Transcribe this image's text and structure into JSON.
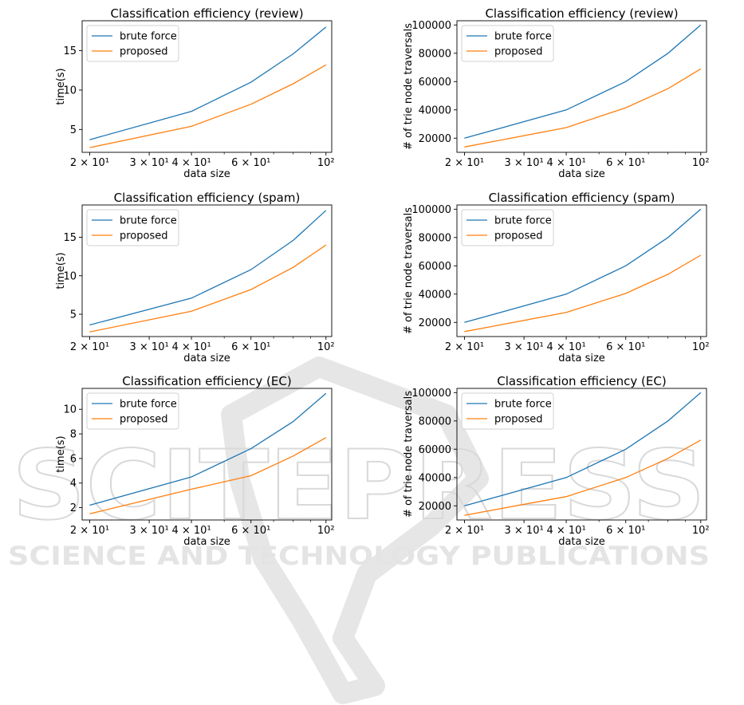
{
  "colors": {
    "brute_force": "#1f77b4",
    "proposed": "#ff7f0e"
  },
  "watermark": {
    "logo_text": "SCITEPRESS",
    "sub_text": "SCIENCE AND TECHNOLOGY PUBLICATIONS"
  },
  "chart_data": [
    {
      "type": "line",
      "title": "Classification efficiency (review)",
      "xlabel": "data size",
      "ylabel": "time(s)",
      "xscale": "log",
      "xlim": [
        19,
        104
      ],
      "ylim": [
        2.1,
        18.8
      ],
      "xticks": [
        {
          "value": 20,
          "label": "2 × 10¹"
        },
        {
          "value": 30,
          "label": "3 × 10¹"
        },
        {
          "value": 40,
          "label": "4 × 10¹"
        },
        {
          "value": 60,
          "label": "6 × 10¹"
        },
        {
          "value": 100,
          "label": "10²"
        }
      ],
      "yticks": [
        5,
        10,
        15
      ],
      "legend_position": "upper-left",
      "x": [
        20,
        40,
        60,
        80,
        100
      ],
      "series": [
        {
          "name": "brute force",
          "values": [
            3.7,
            7.3,
            11.0,
            14.6,
            18.0
          ]
        },
        {
          "name": "proposed",
          "values": [
            2.7,
            5.4,
            8.2,
            10.8,
            13.2
          ]
        }
      ]
    },
    {
      "type": "line",
      "title": "Classification efficiency (review)",
      "xlabel": "data size",
      "ylabel": "# of trie node traversals",
      "xscale": "log",
      "xlim": [
        19,
        104
      ],
      "ylim": [
        10000,
        103000
      ],
      "xticks": [
        {
          "value": 20,
          "label": "2 × 10¹"
        },
        {
          "value": 30,
          "label": "3 × 10¹"
        },
        {
          "value": 40,
          "label": "4 × 10¹"
        },
        {
          "value": 60,
          "label": "6 × 10¹"
        },
        {
          "value": 100,
          "label": "10²"
        }
      ],
      "yticks": [
        20000,
        40000,
        60000,
        80000,
        100000
      ],
      "legend_position": "upper-left",
      "x": [
        20,
        40,
        60,
        80,
        100
      ],
      "series": [
        {
          "name": "brute force",
          "values": [
            20000,
            40000,
            60000,
            80000,
            100000
          ]
        },
        {
          "name": "proposed",
          "values": [
            13800,
            27500,
            41500,
            55000,
            69000
          ]
        }
      ]
    },
    {
      "type": "line",
      "title": "Classification efficiency (spam)",
      "xlabel": "data size",
      "ylabel": "time(s)",
      "xscale": "log",
      "xlim": [
        19,
        104
      ],
      "ylim": [
        2.1,
        19.2
      ],
      "xticks": [
        {
          "value": 20,
          "label": "2 × 10¹"
        },
        {
          "value": 30,
          "label": "3 × 10¹"
        },
        {
          "value": 40,
          "label": "4 × 10¹"
        },
        {
          "value": 60,
          "label": "6 × 10¹"
        },
        {
          "value": 100,
          "label": "10²"
        }
      ],
      "yticks": [
        5,
        10,
        15
      ],
      "legend_position": "upper-left",
      "x": [
        20,
        40,
        60,
        80,
        100
      ],
      "series": [
        {
          "name": "brute force",
          "values": [
            3.6,
            7.1,
            10.8,
            14.6,
            18.5
          ]
        },
        {
          "name": "proposed",
          "values": [
            2.7,
            5.4,
            8.2,
            11.1,
            14.0
          ]
        }
      ]
    },
    {
      "type": "line",
      "title": "Classification efficiency (spam)",
      "xlabel": "data size",
      "ylabel": "# of trie node traversals",
      "xscale": "log",
      "xlim": [
        19,
        104
      ],
      "ylim": [
        10000,
        103000
      ],
      "xticks": [
        {
          "value": 20,
          "label": "2 × 10¹"
        },
        {
          "value": 30,
          "label": "3 × 10¹"
        },
        {
          "value": 40,
          "label": "4 × 10¹"
        },
        {
          "value": 60,
          "label": "6 × 10¹"
        },
        {
          "value": 100,
          "label": "10²"
        }
      ],
      "yticks": [
        20000,
        40000,
        60000,
        80000,
        100000
      ],
      "legend_position": "upper-left",
      "x": [
        20,
        40,
        60,
        80,
        100
      ],
      "series": [
        {
          "name": "brute force",
          "values": [
            20000,
            40000,
            60000,
            80000,
            100000
          ]
        },
        {
          "name": "proposed",
          "values": [
            13500,
            27000,
            40500,
            54000,
            67500
          ]
        }
      ]
    },
    {
      "type": "line",
      "title": "Classification efficiency (EC)",
      "xlabel": "data size",
      "ylabel": "time(s)",
      "xscale": "log",
      "xlim": [
        19,
        104
      ],
      "ylim": [
        1.0,
        11.7
      ],
      "xticks": [
        {
          "value": 20,
          "label": "2 × 10¹"
        },
        {
          "value": 30,
          "label": "3 × 10¹"
        },
        {
          "value": 40,
          "label": "4 × 10¹"
        },
        {
          "value": 60,
          "label": "6 × 10¹"
        },
        {
          "value": 100,
          "label": "10²"
        }
      ],
      "yticks": [
        2,
        4,
        6,
        8,
        10
      ],
      "legend_position": "upper-left",
      "x": [
        20,
        40,
        60,
        80,
        100
      ],
      "series": [
        {
          "name": "brute force",
          "values": [
            2.2,
            4.5,
            6.8,
            9.0,
            11.3
          ]
        },
        {
          "name": "proposed",
          "values": [
            1.5,
            3.5,
            4.6,
            6.2,
            7.7
          ]
        }
      ]
    },
    {
      "type": "line",
      "title": "Classification efficiency (EC)",
      "xlabel": "data size",
      "ylabel": "# of trie node traversals",
      "xscale": "log",
      "xlim": [
        19,
        104
      ],
      "ylim": [
        10000,
        103000
      ],
      "xticks": [
        {
          "value": 20,
          "label": "2 × 10¹"
        },
        {
          "value": 30,
          "label": "3 × 10¹"
        },
        {
          "value": 40,
          "label": "4 × 10¹"
        },
        {
          "value": 60,
          "label": "6 × 10¹"
        },
        {
          "value": 100,
          "label": "10²"
        }
      ],
      "yticks": [
        20000,
        40000,
        60000,
        80000,
        100000
      ],
      "legend_position": "upper-left",
      "x": [
        20,
        40,
        60,
        80,
        100
      ],
      "series": [
        {
          "name": "brute force",
          "values": [
            20000,
            40000,
            60000,
            80000,
            100000
          ]
        },
        {
          "name": "proposed",
          "values": [
            13300,
            26500,
            40000,
            53500,
            66500
          ]
        }
      ]
    }
  ]
}
